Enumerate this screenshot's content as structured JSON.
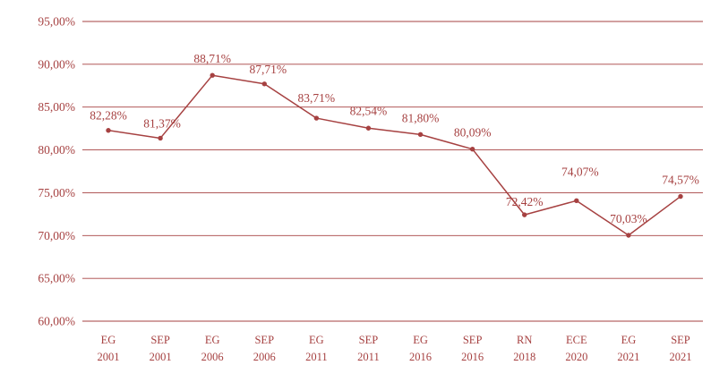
{
  "chart_data": {
    "type": "line",
    "title": "",
    "xlabel": "",
    "ylabel": "",
    "ylim": [
      0.6,
      0.95
    ],
    "y_ticks": [
      "60,00%",
      "65,00%",
      "70,00%",
      "75,00%",
      "80,00%",
      "85,00%",
      "90,00%",
      "95,00%"
    ],
    "categories": [
      [
        "EG",
        "2001"
      ],
      [
        "SEP",
        "2001"
      ],
      [
        "EG",
        "2006"
      ],
      [
        "SEP",
        "2006"
      ],
      [
        "EG",
        "2011"
      ],
      [
        "SEP",
        "2011"
      ],
      [
        "EG",
        "2016"
      ],
      [
        "SEP",
        "2016"
      ],
      [
        "RN",
        "2018"
      ],
      [
        "ECE",
        "2020"
      ],
      [
        "EG",
        "2021"
      ],
      [
        "SEP",
        "2021"
      ]
    ],
    "values": [
      0.8228,
      0.8137,
      0.8871,
      0.8771,
      0.8371,
      0.8254,
      0.818,
      0.8009,
      0.7242,
      0.7407,
      0.7003,
      0.7457
    ],
    "data_labels": [
      "82,28%",
      "81,37%",
      "88,71%",
      "87,71%",
      "83,71%",
      "82,54%",
      "81,80%",
      "80,09%",
      "72,42%",
      "74,07%",
      "70,03%",
      "74,57%"
    ],
    "grid": true,
    "legend": "none",
    "colors": {
      "line": "#a64141",
      "grid": "#a64141",
      "text": "#a64141"
    }
  }
}
